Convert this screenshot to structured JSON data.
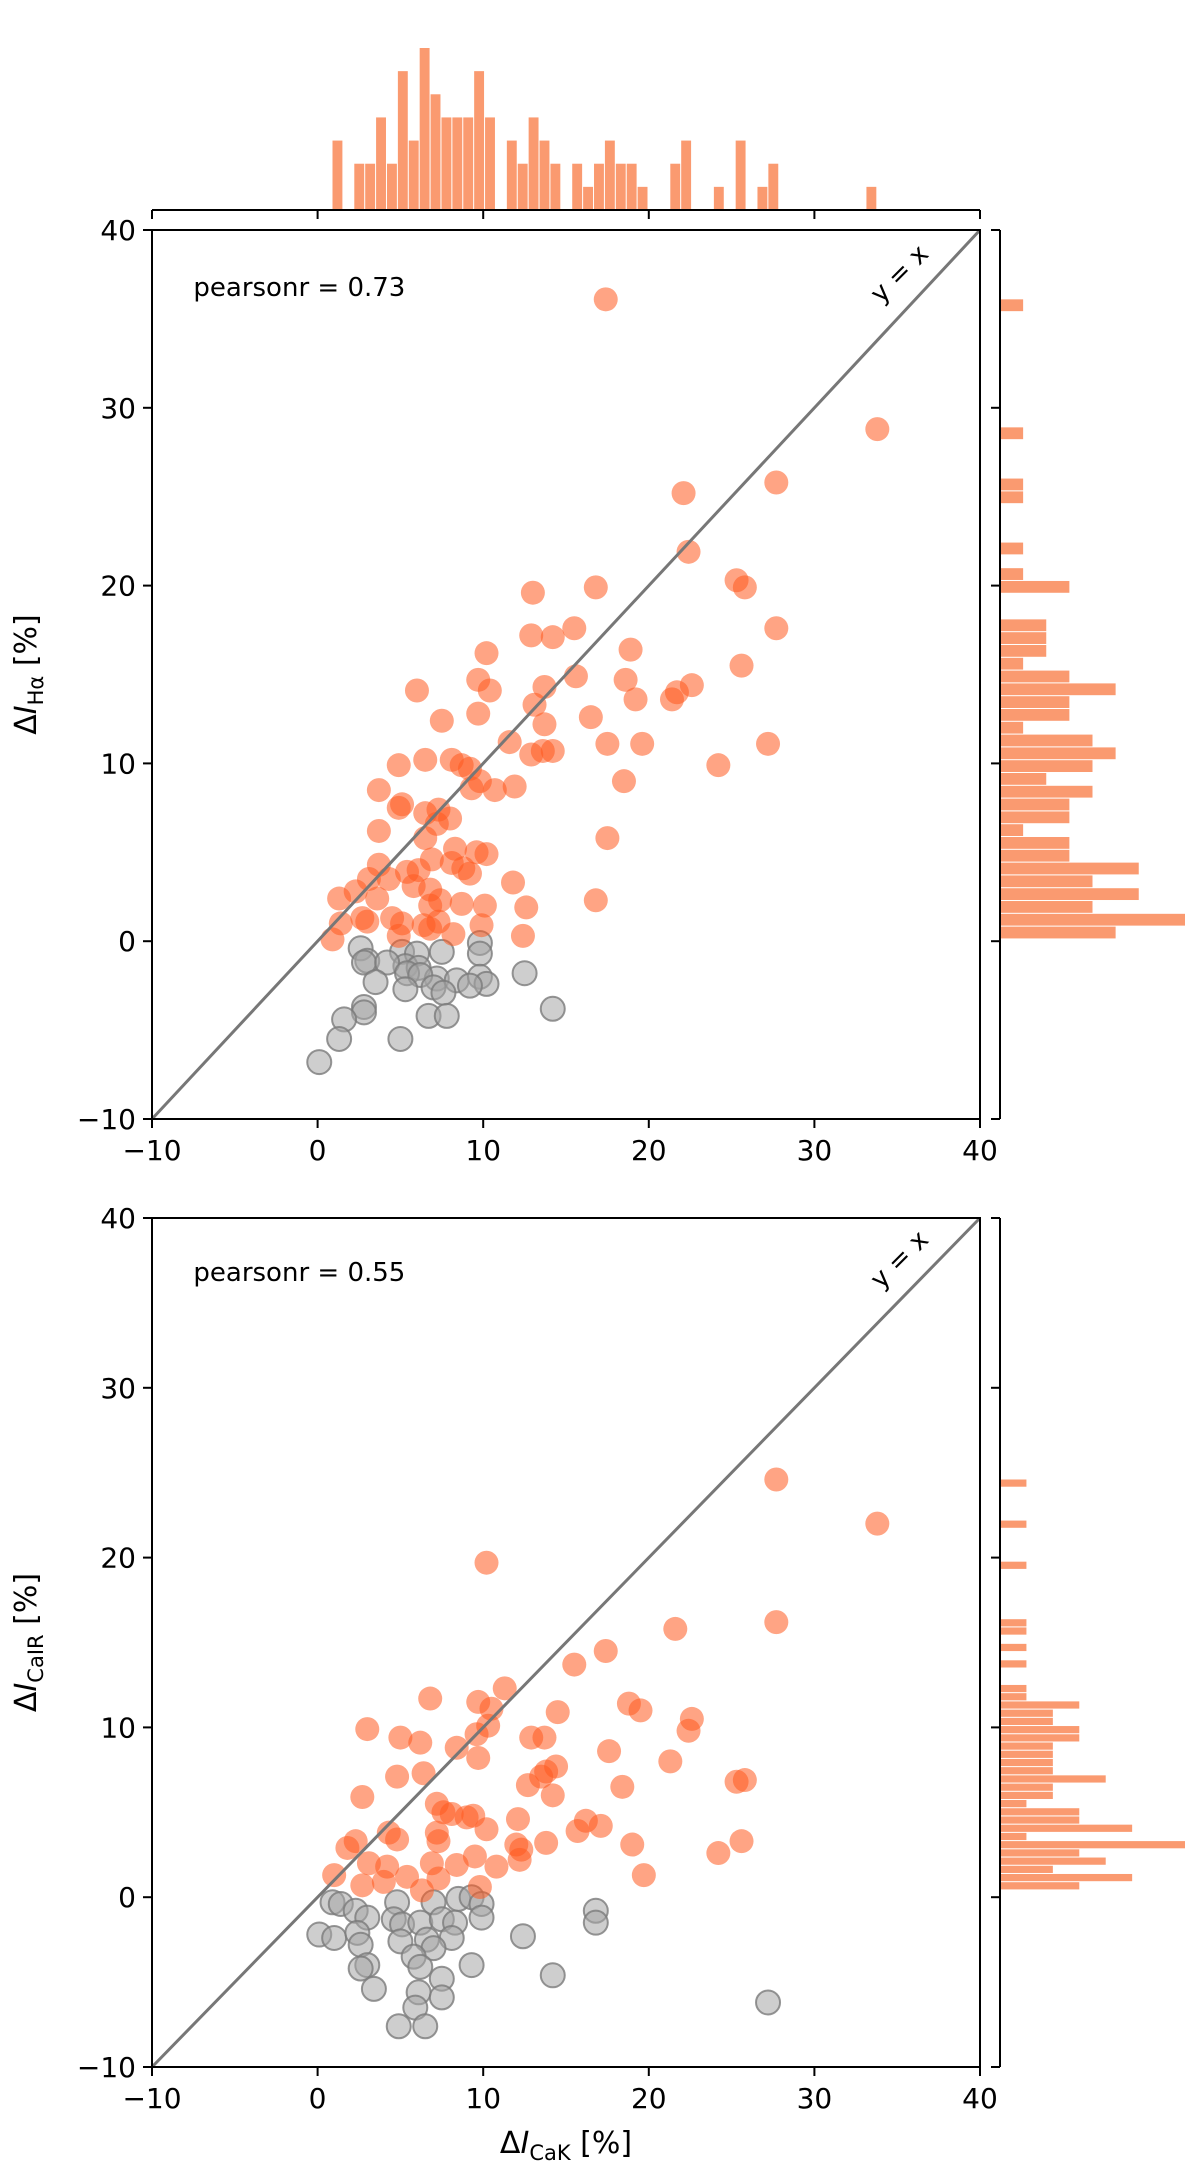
{
  "colors": {
    "active": "#ff5a1f",
    "quiet": "#a6a6a6",
    "diagonal": "#777777",
    "hist": "#fa9a70"
  },
  "chart_data": [
    {
      "type": "scatter",
      "xlabel": "ΔI_CaK [%]",
      "ylabel": "ΔI_Hα [%]",
      "xlim": [
        -10,
        40
      ],
      "ylim": [
        -10,
        40
      ],
      "xticks": [
        "−10",
        "0",
        "10",
        "20",
        "30",
        "40"
      ],
      "yticks": [
        "−10",
        "0",
        "10",
        "20",
        "30",
        "40"
      ],
      "annotation": "pearsonr = 0.73",
      "line_label": "y = x",
      "top_histogram": true,
      "right_histogram": true,
      "series": [
        {
          "points": [
            [
              17.4,
              36.1
            ],
            [
              33.8,
              28.8
            ],
            [
              27.7,
              25.8
            ],
            [
              22.1,
              25.2
            ],
            [
              22.4,
              21.9
            ],
            [
              25.3,
              20.3
            ],
            [
              25.8,
              19.9
            ],
            [
              16.8,
              19.9
            ],
            [
              13.0,
              19.6
            ],
            [
              27.7,
              17.6
            ],
            [
              15.5,
              17.6
            ],
            [
              14.2,
              17.1
            ],
            [
              12.9,
              17.2
            ],
            [
              10.2,
              16.2
            ],
            [
              18.9,
              16.4
            ],
            [
              25.6,
              15.5
            ],
            [
              15.6,
              14.9
            ],
            [
              9.7,
              14.7
            ],
            [
              6.0,
              14.1
            ],
            [
              10.4,
              14.1
            ],
            [
              13.7,
              14.3
            ],
            [
              18.6,
              14.7
            ],
            [
              21.4,
              13.6
            ],
            [
              19.2,
              13.6
            ],
            [
              21.7,
              14.0
            ],
            [
              22.6,
              14.4
            ],
            [
              13.1,
              13.3
            ],
            [
              9.7,
              12.8
            ],
            [
              7.5,
              12.4
            ],
            [
              16.5,
              12.6
            ],
            [
              13.7,
              12.2
            ],
            [
              11.6,
              11.2
            ],
            [
              17.5,
              11.1
            ],
            [
              19.6,
              11.1
            ],
            [
              27.2,
              11.1
            ],
            [
              14.2,
              10.7
            ],
            [
              13.6,
              10.7
            ],
            [
              12.9,
              10.5
            ],
            [
              8.1,
              10.2
            ],
            [
              4.9,
              9.9
            ],
            [
              6.5,
              10.2
            ],
            [
              9.2,
              9.7
            ],
            [
              8.7,
              9.9
            ],
            [
              24.2,
              9.9
            ],
            [
              9.8,
              9.0
            ],
            [
              18.5,
              9.0
            ],
            [
              9.3,
              8.6
            ],
            [
              3.7,
              8.5
            ],
            [
              11.9,
              8.7
            ],
            [
              10.7,
              8.5
            ],
            [
              4.9,
              7.5
            ],
            [
              6.5,
              7.2
            ],
            [
              5.1,
              7.7
            ],
            [
              7.3,
              7.4
            ],
            [
              17.5,
              5.8
            ],
            [
              8.0,
              6.9
            ],
            [
              3.7,
              6.2
            ],
            [
              7.2,
              6.6
            ],
            [
              6.5,
              5.8
            ],
            [
              9.6,
              5.0
            ],
            [
              8.3,
              5.2
            ],
            [
              10.2,
              4.9
            ],
            [
              6.9,
              4.6
            ],
            [
              8.1,
              4.4
            ],
            [
              6.1,
              4.0
            ],
            [
              3.7,
              4.3
            ],
            [
              8.8,
              4.1
            ],
            [
              5.4,
              3.9
            ],
            [
              3.1,
              3.5
            ],
            [
              9.2,
              3.8
            ],
            [
              11.8,
              3.3
            ],
            [
              4.3,
              3.5
            ],
            [
              6.8,
              2.9
            ],
            [
              5.8,
              3.1
            ],
            [
              1.3,
              2.4
            ],
            [
              2.3,
              2.8
            ],
            [
              3.6,
              2.4
            ],
            [
              6.8,
              2.0
            ],
            [
              7.4,
              2.3
            ],
            [
              8.7,
              2.1
            ],
            [
              10.1,
              2.0
            ],
            [
              12.6,
              1.9
            ],
            [
              16.8,
              2.3
            ],
            [
              4.5,
              1.3
            ],
            [
              3.0,
              1.1
            ],
            [
              5.1,
              1.0
            ],
            [
              6.4,
              0.9
            ],
            [
              1.4,
              1.0
            ],
            [
              2.7,
              1.3
            ],
            [
              7.3,
              1.1
            ],
            [
              6.8,
              0.7
            ],
            [
              9.9,
              0.9
            ],
            [
              0.9,
              0.1
            ],
            [
              4.9,
              0.3
            ],
            [
              8.2,
              0.4
            ],
            [
              12.4,
              0.3
            ]
          ],
          "color": "active"
        },
        {
          "points": [
            [
              2.6,
              -0.4
            ],
            [
              5.1,
              -0.6
            ],
            [
              6.0,
              -0.7
            ],
            [
              9.8,
              -0.1
            ],
            [
              3.0,
              -1.1
            ],
            [
              2.8,
              -1.2
            ],
            [
              5.3,
              -1.4
            ],
            [
              4.2,
              -1.2
            ],
            [
              6.1,
              -1.5
            ],
            [
              7.5,
              -0.6
            ],
            [
              9.8,
              -0.7
            ],
            [
              5.4,
              -1.8
            ],
            [
              7.2,
              -2.1
            ],
            [
              6.2,
              -1.9
            ],
            [
              3.5,
              -2.3
            ],
            [
              8.4,
              -2.2
            ],
            [
              9.8,
              -2.0
            ],
            [
              10.2,
              -2.4
            ],
            [
              12.5,
              -1.8
            ],
            [
              7.0,
              -2.6
            ],
            [
              7.6,
              -2.9
            ],
            [
              5.3,
              -2.7
            ],
            [
              2.8,
              -3.7
            ],
            [
              2.8,
              -4.0
            ],
            [
              6.7,
              -4.2
            ],
            [
              7.8,
              -4.2
            ],
            [
              14.2,
              -3.8
            ],
            [
              1.6,
              -4.4
            ],
            [
              1.3,
              -5.5
            ],
            [
              5.0,
              -5.5
            ],
            [
              0.1,
              -6.8
            ],
            [
              9.2,
              -2.5
            ]
          ],
          "color": "quiet"
        }
      ]
    },
    {
      "type": "scatter",
      "xlabel": "ΔI_CaK [%]",
      "ylabel": "ΔI_CaIR [%]",
      "xlim": [
        -10,
        40
      ],
      "ylim": [
        -10,
        40
      ],
      "xticks": [
        "−10",
        "0",
        "10",
        "20",
        "30",
        "40"
      ],
      "yticks": [
        "−10",
        "0",
        "10",
        "20",
        "30",
        "40"
      ],
      "annotation": "pearsonr = 0.55",
      "line_label": "y = x",
      "top_histogram": false,
      "right_histogram": true,
      "series": [
        {
          "points": [
            [
              27.7,
              24.6
            ],
            [
              33.8,
              22.0
            ],
            [
              10.2,
              19.7
            ],
            [
              27.7,
              16.2
            ],
            [
              21.6,
              15.8
            ],
            [
              17.4,
              14.5
            ],
            [
              15.5,
              13.7
            ],
            [
              11.3,
              12.3
            ],
            [
              6.8,
              11.7
            ],
            [
              9.7,
              11.5
            ],
            [
              10.5,
              11.1
            ],
            [
              18.8,
              11.4
            ],
            [
              19.5,
              11.0
            ],
            [
              14.5,
              10.9
            ],
            [
              22.6,
              10.5
            ],
            [
              22.4,
              9.8
            ],
            [
              3.0,
              9.9
            ],
            [
              10.3,
              10.1
            ],
            [
              5.0,
              9.4
            ],
            [
              6.2,
              9.1
            ],
            [
              12.9,
              9.4
            ],
            [
              9.6,
              9.6
            ],
            [
              13.7,
              9.4
            ],
            [
              8.4,
              8.8
            ],
            [
              17.6,
              8.6
            ],
            [
              9.7,
              8.2
            ],
            [
              14.4,
              7.7
            ],
            [
              21.3,
              8.0
            ],
            [
              13.8,
              7.4
            ],
            [
              6.4,
              7.3
            ],
            [
              4.8,
              7.1
            ],
            [
              13.5,
              7.1
            ],
            [
              12.7,
              6.6
            ],
            [
              18.4,
              6.5
            ],
            [
              25.3,
              6.8
            ],
            [
              25.8,
              6.9
            ],
            [
              2.7,
              5.9
            ],
            [
              7.2,
              5.5
            ],
            [
              14.2,
              6.0
            ],
            [
              8.1,
              4.9
            ],
            [
              7.6,
              5.0
            ],
            [
              9.0,
              4.7
            ],
            [
              9.4,
              4.8
            ],
            [
              12.1,
              4.6
            ],
            [
              16.2,
              4.5
            ],
            [
              10.2,
              4.0
            ],
            [
              17.1,
              4.2
            ],
            [
              4.3,
              3.8
            ],
            [
              7.2,
              3.8
            ],
            [
              15.7,
              3.9
            ],
            [
              2.3,
              3.3
            ],
            [
              4.8,
              3.4
            ],
            [
              7.3,
              3.3
            ],
            [
              12.0,
              3.1
            ],
            [
              13.8,
              3.2
            ],
            [
              1.8,
              2.9
            ],
            [
              9.5,
              2.4
            ],
            [
              12.3,
              2.8
            ],
            [
              19.0,
              3.1
            ],
            [
              25.6,
              3.3
            ],
            [
              24.2,
              2.6
            ],
            [
              3.1,
              2.0
            ],
            [
              6.9,
              2.0
            ],
            [
              8.4,
              1.9
            ],
            [
              4.2,
              1.8
            ],
            [
              10.8,
              1.8
            ],
            [
              12.2,
              2.2
            ],
            [
              1.0,
              1.3
            ],
            [
              5.4,
              1.2
            ],
            [
              7.3,
              1.1
            ],
            [
              19.7,
              1.3
            ],
            [
              2.7,
              0.7
            ],
            [
              4.0,
              0.9
            ],
            [
              9.8,
              0.6
            ],
            [
              6.3,
              0.4
            ]
          ],
          "color": "active"
        },
        {
          "points": [
            [
              0.9,
              -0.3
            ],
            [
              1.4,
              -0.4
            ],
            [
              4.8,
              -0.3
            ],
            [
              7.0,
              -0.3
            ],
            [
              8.5,
              -0.1
            ],
            [
              9.3,
              0.0
            ],
            [
              9.9,
              -0.4
            ],
            [
              16.8,
              -0.8
            ],
            [
              2.3,
              -0.8
            ],
            [
              3.0,
              -1.2
            ],
            [
              4.6,
              -1.3
            ],
            [
              5.1,
              -1.6
            ],
            [
              6.2,
              -1.5
            ],
            [
              7.5,
              -1.3
            ],
            [
              8.3,
              -1.5
            ],
            [
              9.9,
              -1.2
            ],
            [
              12.4,
              -2.3
            ],
            [
              16.8,
              -1.5
            ],
            [
              0.1,
              -2.2
            ],
            [
              1.0,
              -2.4
            ],
            [
              2.4,
              -2.1
            ],
            [
              5.0,
              -2.6
            ],
            [
              6.6,
              -2.5
            ],
            [
              8.1,
              -2.4
            ],
            [
              2.6,
              -2.8
            ],
            [
              7.0,
              -3.0
            ],
            [
              3.0,
              -4.0
            ],
            [
              5.8,
              -3.5
            ],
            [
              9.3,
              -4.0
            ],
            [
              2.6,
              -4.2
            ],
            [
              6.2,
              -4.1
            ],
            [
              14.2,
              -4.6
            ],
            [
              7.5,
              -4.8
            ],
            [
              3.4,
              -5.4
            ],
            [
              6.1,
              -5.6
            ],
            [
              7.5,
              -5.9
            ],
            [
              27.2,
              -6.2
            ],
            [
              5.9,
              -6.5
            ],
            [
              4.9,
              -7.6
            ],
            [
              6.5,
              -7.6
            ]
          ],
          "color": "quiet"
        }
      ]
    }
  ]
}
